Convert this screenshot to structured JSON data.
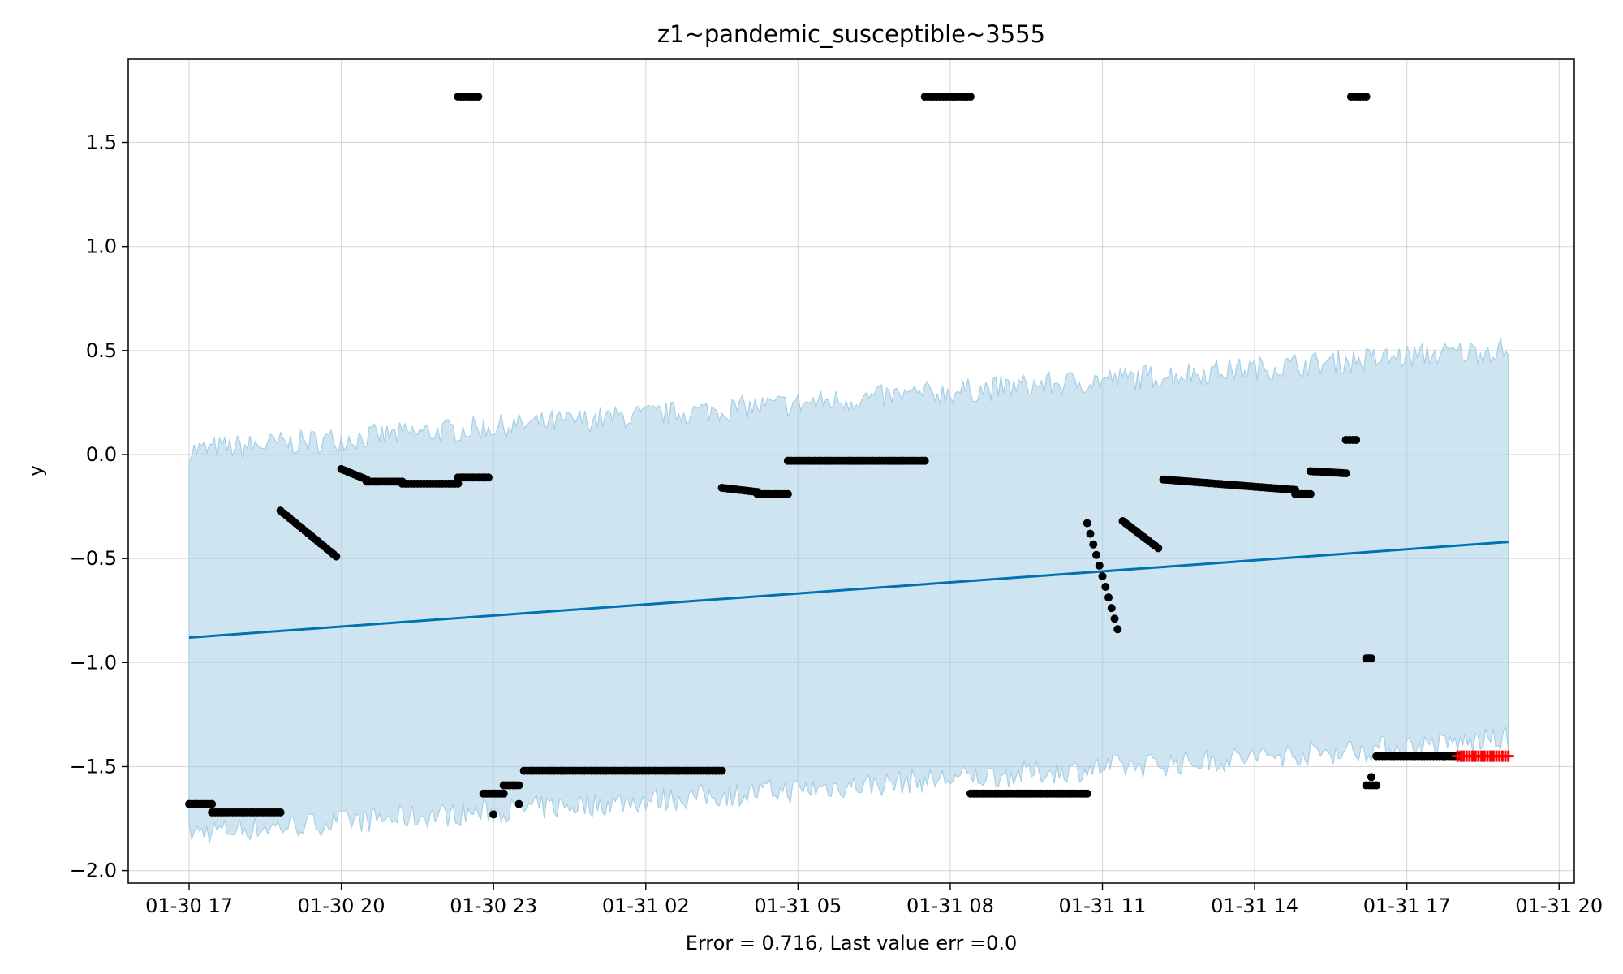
{
  "chart_data": {
    "type": "line",
    "title": "z1~pandemic_susceptible~3555",
    "xlabel": "Error = 0.716, Last value err =0.0",
    "ylabel": "y",
    "x_ticks": [
      "01-30 17",
      "01-30 20",
      "01-30 23",
      "01-31 02",
      "01-31 05",
      "01-31 08",
      "01-31 11",
      "01-31 14",
      "01-31 17",
      "01-31 20"
    ],
    "y_ticks": [
      "−2.0",
      "−1.5",
      "−1.0",
      "−0.5",
      "0.0",
      "0.5",
      "1.0",
      "1.5"
    ],
    "xlim_hours": [
      -1.2,
      27.3
    ],
    "ylim": [
      -2.06,
      1.9
    ],
    "grid": true,
    "colors": {
      "forecast_line": "#0072b2",
      "interval_fill": "#a6cfe6",
      "observed_points": "#000000",
      "last_points": "#ff0000"
    },
    "series": [
      {
        "kind": "forecast",
        "x_hours": [
          0,
          26
        ],
        "y": [
          -0.88,
          -0.42
        ]
      },
      {
        "kind": "interval",
        "x_hours": [
          0,
          26
        ],
        "lower": [
          -1.8,
          -1.35
        ],
        "upper": [
          0.0,
          0.49
        ]
      },
      {
        "kind": "observed",
        "segments": [
          {
            "x_hours": [
              0,
              0.45
            ],
            "y": [
              -1.68,
              -1.68
            ]
          },
          {
            "x_hours": [
              0.45,
              1.8
            ],
            "y": [
              -1.72,
              -1.72
            ]
          },
          {
            "x_hours": [
              1.8,
              2.9
            ],
            "y": [
              -0.27,
              -0.49
            ]
          },
          {
            "x_hours": [
              3.0,
              3.5
            ],
            "y": [
              -0.07,
              -0.12
            ]
          },
          {
            "x_hours": [
              3.5,
              4.2
            ],
            "y": [
              -0.13,
              -0.13
            ]
          },
          {
            "x_hours": [
              4.2,
              5.3
            ],
            "y": [
              -0.14,
              -0.14
            ]
          },
          {
            "x_hours": [
              5.3,
              5.3
            ],
            "y": [
              -0.12,
              -0.12
            ]
          },
          {
            "x_hours": [
              5.3,
              5.9
            ],
            "y": [
              -0.11,
              -0.11
            ]
          },
          {
            "x_hours": [
              5.3,
              5.7
            ],
            "y": [
              1.72,
              1.72
            ]
          },
          {
            "x_hours": [
              5.8,
              6.2
            ],
            "y": [
              -1.63,
              -1.63
            ]
          },
          {
            "x_hours": [
              6.2,
              6.5
            ],
            "y": [
              -1.59,
              -1.59
            ]
          },
          {
            "x_hours": [
              6.6,
              10.5
            ],
            "y": [
              -1.52,
              -1.52
            ]
          },
          {
            "x_hours": [
              10.5,
              11.2
            ],
            "y": [
              -0.16,
              -0.18
            ]
          },
          {
            "x_hours": [
              11.2,
              11.8
            ],
            "y": [
              -0.19,
              -0.19
            ]
          },
          {
            "x_hours": [
              11.8,
              14.5
            ],
            "y": [
              -0.03,
              -0.03
            ]
          },
          {
            "x_hours": [
              14.5,
              15.4
            ],
            "y": [
              1.72,
              1.72
            ]
          },
          {
            "x_hours": [
              15.4,
              17.7
            ],
            "y": [
              -1.63,
              -1.63
            ]
          },
          {
            "x_hours": [
              17.7,
              18.3
            ],
            "y": [
              -0.33,
              -0.84
            ]
          },
          {
            "x_hours": [
              18.4,
              19.1
            ],
            "y": [
              -0.32,
              -0.45
            ]
          },
          {
            "x_hours": [
              19.2,
              21.8
            ],
            "y": [
              -0.12,
              -0.17
            ]
          },
          {
            "x_hours": [
              21.8,
              22.1
            ],
            "y": [
              -0.19,
              -0.19
            ]
          },
          {
            "x_hours": [
              22.1,
              22.8
            ],
            "y": [
              -0.08,
              -0.09
            ]
          },
          {
            "x_hours": [
              22.8,
              23.0
            ],
            "y": [
              0.07,
              0.07
            ]
          },
          {
            "x_hours": [
              22.9,
              23.2
            ],
            "y": [
              1.72,
              1.72
            ]
          },
          {
            "x_hours": [
              23.2,
              23.3
            ],
            "y": [
              -0.98,
              -0.98
            ]
          },
          {
            "x_hours": [
              23.2,
              23.4
            ],
            "y": [
              -1.59,
              -1.59
            ]
          },
          {
            "x_hours": [
              23.4,
              25.0
            ],
            "y": [
              -1.45,
              -1.45
            ]
          }
        ],
        "single_points": [
          {
            "x_hours": 6.0,
            "y": -1.73
          },
          {
            "x_hours": 6.5,
            "y": -1.68
          },
          {
            "x_hours": 23.3,
            "y": -1.55
          }
        ]
      },
      {
        "kind": "last",
        "x_hours": [
          25.0,
          26.0
        ],
        "y": [
          -1.45,
          -1.45
        ]
      }
    ]
  }
}
